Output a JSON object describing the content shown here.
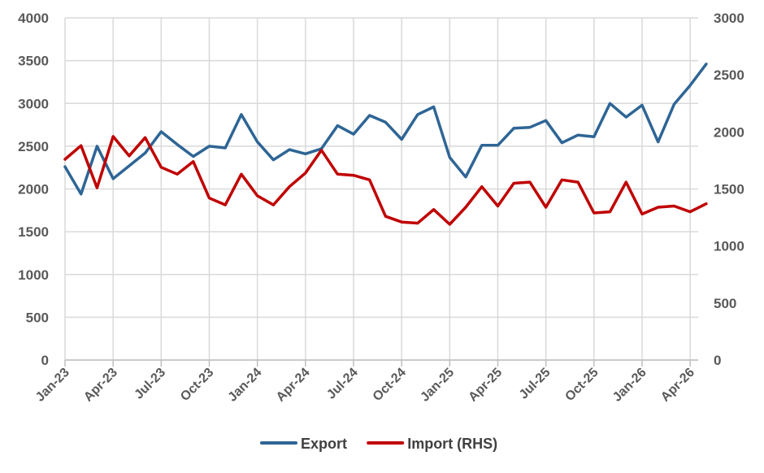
{
  "chart_data": {
    "type": "line",
    "title": "",
    "xlabel": "",
    "ylabel": "",
    "y2label": "",
    "ylim": [
      0,
      4000
    ],
    "y2lim": [
      0,
      3000
    ],
    "yticks": [
      "0",
      "500",
      "1000",
      "1500",
      "2000",
      "2500",
      "3000",
      "3500",
      "4000"
    ],
    "y2ticks": [
      "0",
      "500",
      "1000",
      "1500",
      "2000",
      "2500",
      "3000"
    ],
    "x_labels": [
      "Jan-23",
      "Apr-23",
      "Jul-23",
      "Oct-23",
      "Jan-24",
      "Apr-24",
      "Jul-24",
      "Oct-24",
      "Jan-25",
      "Apr-25",
      "Jul-25",
      "Oct-25",
      "Jan-26",
      "Apr-26"
    ],
    "x_labels_every": 3,
    "x": [
      "Jan-23",
      "Feb-23",
      "Mar-23",
      "Apr-23",
      "May-23",
      "Jun-23",
      "Jul-23",
      "Aug-23",
      "Sep-23",
      "Oct-23",
      "Nov-23",
      "Dec-23",
      "Jan-24",
      "Feb-24",
      "Mar-24",
      "Apr-24",
      "May-24",
      "Jun-24",
      "Jul-24",
      "Aug-24",
      "Sep-24",
      "Oct-24",
      "Nov-24",
      "Dec-24",
      "Jan-25",
      "Feb-25",
      "Mar-25",
      "Apr-25",
      "May-25",
      "Jun-25",
      "Jul-25",
      "Aug-25",
      "Sep-25",
      "Oct-25",
      "Nov-25",
      "Dec-25",
      "Jan-26",
      "Feb-26",
      "Mar-26",
      "Apr-26",
      "May-26"
    ],
    "grid": true,
    "legend_position": "bottom",
    "series": [
      {
        "name": "Export",
        "axis": "left",
        "color": "#2e6595",
        "values": [
          2260,
          1940,
          2500,
          2120,
          2270,
          2420,
          2670,
          2520,
          2380,
          2500,
          2480,
          2870,
          2550,
          2340,
          2460,
          2410,
          2470,
          2740,
          2640,
          2860,
          2780,
          2580,
          2870,
          2960,
          2370,
          2140,
          2510,
          2510,
          2710,
          2720,
          2800,
          2540,
          2630,
          2610,
          3000,
          2840,
          2980,
          2550,
          2990,
          3210,
          3460
        ]
      },
      {
        "name": "Import (RHS)",
        "axis": "right",
        "color": "#c00000",
        "values": [
          1760,
          1880,
          1510,
          1960,
          1790,
          1950,
          1690,
          1630,
          1740,
          1420,
          1360,
          1630,
          1440,
          1360,
          1520,
          1640,
          1840,
          1630,
          1620,
          1580,
          1260,
          1210,
          1200,
          1320,
          1190,
          1340,
          1520,
          1350,
          1550,
          1560,
          1340,
          1580,
          1560,
          1290,
          1300,
          1560,
          1280,
          1340,
          1350,
          1300,
          1370
        ]
      }
    ]
  }
}
